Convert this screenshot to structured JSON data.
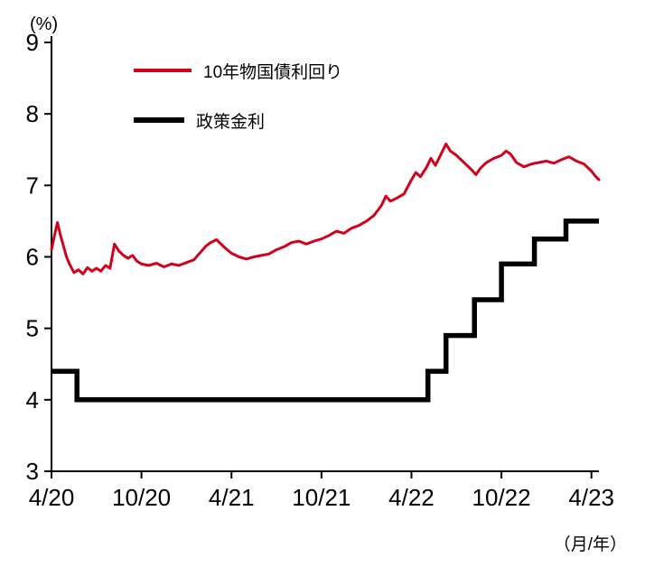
{
  "chart_data": {
    "type": "line",
    "title": "",
    "unit_y": "(%)",
    "unit_x": "（月/年）",
    "ylim": [
      3,
      9
    ],
    "xlim": [
      0,
      36.5
    ],
    "yticks": [
      3,
      4,
      5,
      6,
      7,
      8,
      9
    ],
    "xticks": {
      "positions": [
        0,
        6,
        12,
        18,
        24,
        30,
        36
      ],
      "labels": [
        "4/20",
        "10/20",
        "4/21",
        "10/21",
        "4/22",
        "10/22",
        "4/23"
      ]
    },
    "x_unit_note": "months since 4/2020",
    "grid": false,
    "legend_position": "top-left-inside",
    "series": [
      {
        "id": "bond-yield-line",
        "name": "10年物国債利回り",
        "color": "#d0021b",
        "width": 3,
        "style": "line",
        "x": [
          0,
          0.2,
          0.4,
          0.6,
          0.8,
          1,
          1.2,
          1.5,
          1.8,
          2.1,
          2.4,
          2.7,
          3,
          3.3,
          3.6,
          3.9,
          4.2,
          4.5,
          4.8,
          5.1,
          5.4,
          5.7,
          6,
          6.5,
          7,
          7.5,
          8,
          8.5,
          9,
          9.5,
          10,
          10.3,
          10.6,
          11,
          11.3,
          11.6,
          12,
          12.5,
          13,
          13.5,
          14,
          14.5,
          15,
          15.5,
          16,
          16.5,
          17,
          17.5,
          18,
          18.5,
          19,
          19.5,
          20,
          20.5,
          21,
          21.5,
          22,
          22.3,
          22.6,
          23,
          23.5,
          24,
          24.3,
          24.6,
          25,
          25.3,
          25.6,
          26,
          26.3,
          26.6,
          27,
          27.5,
          28,
          28.3,
          28.6,
          29,
          29.5,
          30,
          30.3,
          30.6,
          31,
          31.5,
          32,
          32.5,
          33,
          33.5,
          34,
          34.5,
          35,
          35.5,
          36,
          36.3,
          36.5
        ],
        "y": [
          6.1,
          6.3,
          6.48,
          6.3,
          6.15,
          6,
          5.9,
          5.78,
          5.82,
          5.76,
          5.85,
          5.8,
          5.84,
          5.8,
          5.88,
          5.84,
          6.18,
          6.08,
          6.02,
          5.98,
          6.02,
          5.94,
          5.9,
          5.88,
          5.91,
          5.86,
          5.9,
          5.88,
          5.92,
          5.96,
          6.08,
          6.15,
          6.2,
          6.24,
          6.18,
          6.12,
          6.05,
          6,
          5.97,
          6,
          6.02,
          6.04,
          6.1,
          6.14,
          6.2,
          6.22,
          6.18,
          6.22,
          6.25,
          6.3,
          6.36,
          6.33,
          6.4,
          6.44,
          6.5,
          6.58,
          6.72,
          6.85,
          6.78,
          6.82,
          6.88,
          7.08,
          7.18,
          7.12,
          7.25,
          7.38,
          7.28,
          7.45,
          7.58,
          7.48,
          7.42,
          7.32,
          7.22,
          7.15,
          7.24,
          7.32,
          7.38,
          7.42,
          7.48,
          7.44,
          7.32,
          7.26,
          7.3,
          7.32,
          7.34,
          7.31,
          7.36,
          7.4,
          7.34,
          7.3,
          7.2,
          7.12,
          7.08
        ]
      },
      {
        "id": "policy-rate-line",
        "name": "政策金利",
        "color": "#000000",
        "width": 5.5,
        "style": "step",
        "x": [
          0,
          1.7,
          25.1,
          26.3,
          28.2,
          30,
          32.2,
          34.3,
          36.5
        ],
        "y": [
          4.4,
          4.0,
          4.4,
          4.9,
          5.4,
          5.9,
          6.25,
          6.5,
          6.5
        ]
      }
    ]
  }
}
